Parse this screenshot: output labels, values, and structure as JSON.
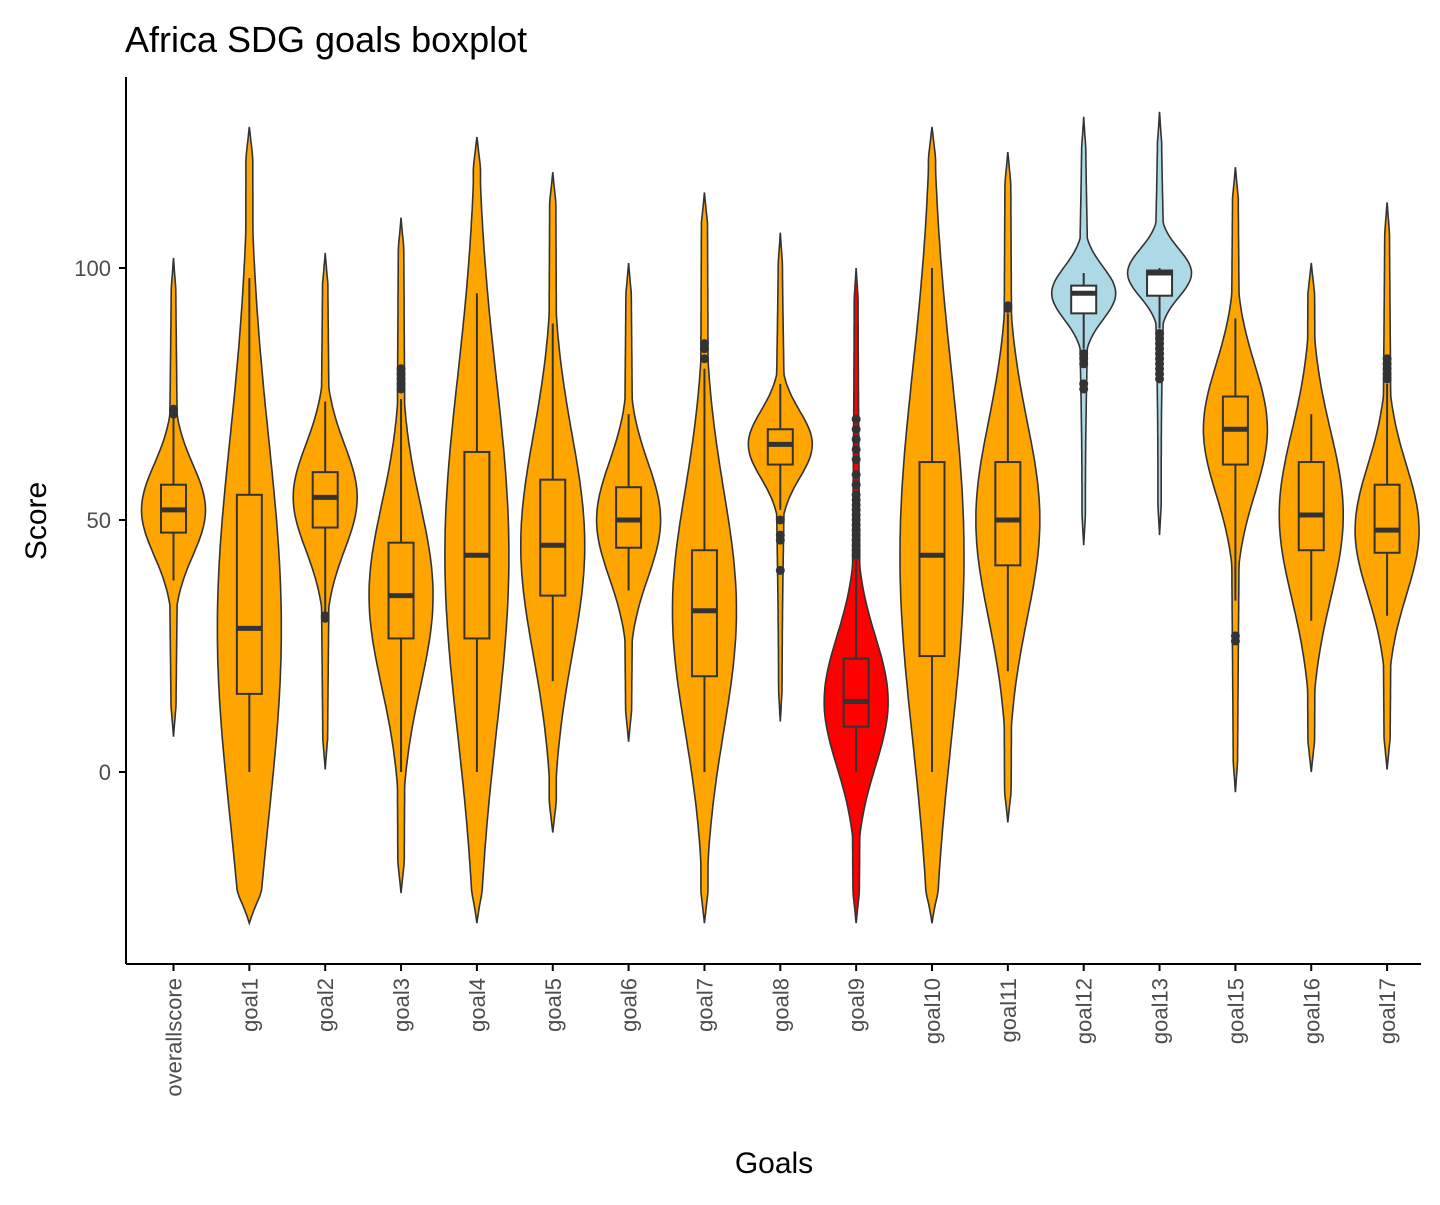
{
  "chart_data": {
    "type": "violin",
    "title": "Africa SDG goals boxplot",
    "xlabel": "Goals",
    "ylabel": "Score",
    "ylim": [
      -38,
      137
    ],
    "yticks": [
      0,
      50,
      100
    ],
    "grid": false,
    "legend": "none",
    "colors": {
      "orange": "#FFA500",
      "red": "#FF0000",
      "lightblue": "#ADD8E6",
      "outline": "#333333",
      "axis": "#000000"
    },
    "categories": [
      "overallscore",
      "goal1",
      "goal2",
      "goal3",
      "goal4",
      "goal5",
      "goal6",
      "goal7",
      "goal8",
      "goal9",
      "goal10",
      "goal11",
      "goal12",
      "goal13",
      "goal15",
      "goal16",
      "goal17"
    ],
    "series": [
      {
        "category": "overallscore",
        "fill": "orange",
        "violin_range": [
          7,
          102
        ],
        "box": {
          "whisker_low": 38,
          "q1": 47.5,
          "median": 52,
          "q3": 57,
          "whisker_high": 71
        },
        "outliers": [
          72,
          71.5,
          71
        ]
      },
      {
        "category": "goal1",
        "fill": "orange",
        "violin_range": [
          -30,
          128
        ],
        "box": {
          "whisker_low": 0,
          "q1": 15.5,
          "median": 28.5,
          "q3": 55,
          "whisker_high": 98
        },
        "outliers": []
      },
      {
        "category": "goal2",
        "fill": "orange",
        "violin_range": [
          0.5,
          103
        ],
        "box": {
          "whisker_low": 31,
          "q1": 48.5,
          "median": 54.5,
          "q3": 59.5,
          "whisker_high": 73.5
        },
        "outliers": [
          31,
          30.5
        ]
      },
      {
        "category": "goal3",
        "fill": "orange",
        "violin_range": [
          -24,
          110
        ],
        "box": {
          "whisker_low": 0,
          "q1": 26.5,
          "median": 35,
          "q3": 45.5,
          "whisker_high": 74
        },
        "outliers": [
          76,
          77,
          78,
          79,
          80
        ]
      },
      {
        "category": "goal4",
        "fill": "orange",
        "violin_range": [
          -30,
          126
        ],
        "box": {
          "whisker_low": 0,
          "q1": 26.5,
          "median": 43,
          "q3": 63.5,
          "whisker_high": 95
        },
        "outliers": []
      },
      {
        "category": "goal5",
        "fill": "orange",
        "violin_range": [
          -12,
          119
        ],
        "box": {
          "whisker_low": 18,
          "q1": 35,
          "median": 45,
          "q3": 58,
          "whisker_high": 89
        },
        "outliers": []
      },
      {
        "category": "goal6",
        "fill": "orange",
        "violin_range": [
          6,
          101
        ],
        "box": {
          "whisker_low": 36,
          "q1": 44.5,
          "median": 50,
          "q3": 56.5,
          "whisker_high": 71
        },
        "outliers": []
      },
      {
        "category": "goal7",
        "fill": "orange",
        "violin_range": [
          -30,
          115
        ],
        "box": {
          "whisker_low": 0,
          "q1": 19,
          "median": 32,
          "q3": 44,
          "whisker_high": 80
        },
        "outliers": [
          82,
          84,
          85
        ]
      },
      {
        "category": "goal8",
        "fill": "orange",
        "violin_range": [
          10,
          107
        ],
        "box": {
          "whisker_low": 52,
          "q1": 61,
          "median": 65,
          "q3": 68,
          "whisker_high": 77
        },
        "outliers": [
          50,
          47,
          46,
          40
        ]
      },
      {
        "category": "goal9",
        "fill": "red",
        "violin_range": [
          -30,
          100
        ],
        "box": {
          "whisker_low": 0,
          "q1": 9,
          "median": 14,
          "q3": 22.5,
          "whisker_high": 42
        },
        "outliers": [
          43,
          44,
          45,
          46,
          47,
          48,
          49,
          50,
          51,
          52,
          53,
          54,
          55,
          57,
          59,
          62,
          64,
          66,
          68,
          70
        ]
      },
      {
        "category": "goal10",
        "fill": "orange",
        "violin_range": [
          -30,
          128
        ],
        "box": {
          "whisker_low": 0,
          "q1": 23,
          "median": 43,
          "q3": 61.5,
          "whisker_high": 100
        },
        "outliers": []
      },
      {
        "category": "goal11",
        "fill": "orange",
        "violin_range": [
          -10,
          123
        ],
        "box": {
          "whisker_low": 20,
          "q1": 41,
          "median": 50,
          "q3": 61.5,
          "whisker_high": 91
        },
        "outliers": [
          92.5,
          92
        ]
      },
      {
        "category": "goal12",
        "fill": "lightblue",
        "violin_range": [
          45,
          130
        ],
        "box": {
          "whisker_low": 84,
          "q1": 91,
          "median": 95,
          "q3": 96.5,
          "whisker_high": 99
        },
        "outliers": [
          83,
          82,
          81,
          77,
          76
        ]
      },
      {
        "category": "goal13",
        "fill": "lightblue",
        "violin_range": [
          47,
          131
        ],
        "box": {
          "whisker_low": 88,
          "q1": 94.5,
          "median": 99,
          "q3": 99.5,
          "whisker_high": 100
        },
        "outliers": [
          87,
          86,
          85,
          84,
          83,
          82,
          81,
          80,
          79,
          78
        ]
      },
      {
        "category": "goal15",
        "fill": "orange",
        "violin_range": [
          -4,
          120
        ],
        "box": {
          "whisker_low": 34,
          "q1": 61,
          "median": 68,
          "q3": 74.5,
          "whisker_high": 90
        },
        "outliers": [
          27,
          26
        ]
      },
      {
        "category": "goal16",
        "fill": "orange",
        "violin_range": [
          0,
          101
        ],
        "box": {
          "whisker_low": 30,
          "q1": 44,
          "median": 51,
          "q3": 61.5,
          "whisker_high": 71
        },
        "outliers": []
      },
      {
        "category": "goal17",
        "fill": "orange",
        "violin_range": [
          0.5,
          113
        ],
        "box": {
          "whisker_low": 31,
          "q1": 43.5,
          "median": 48,
          "q3": 57,
          "whisker_high": 77
        },
        "outliers": [
          78,
          79,
          80,
          81,
          82
        ]
      }
    ]
  }
}
